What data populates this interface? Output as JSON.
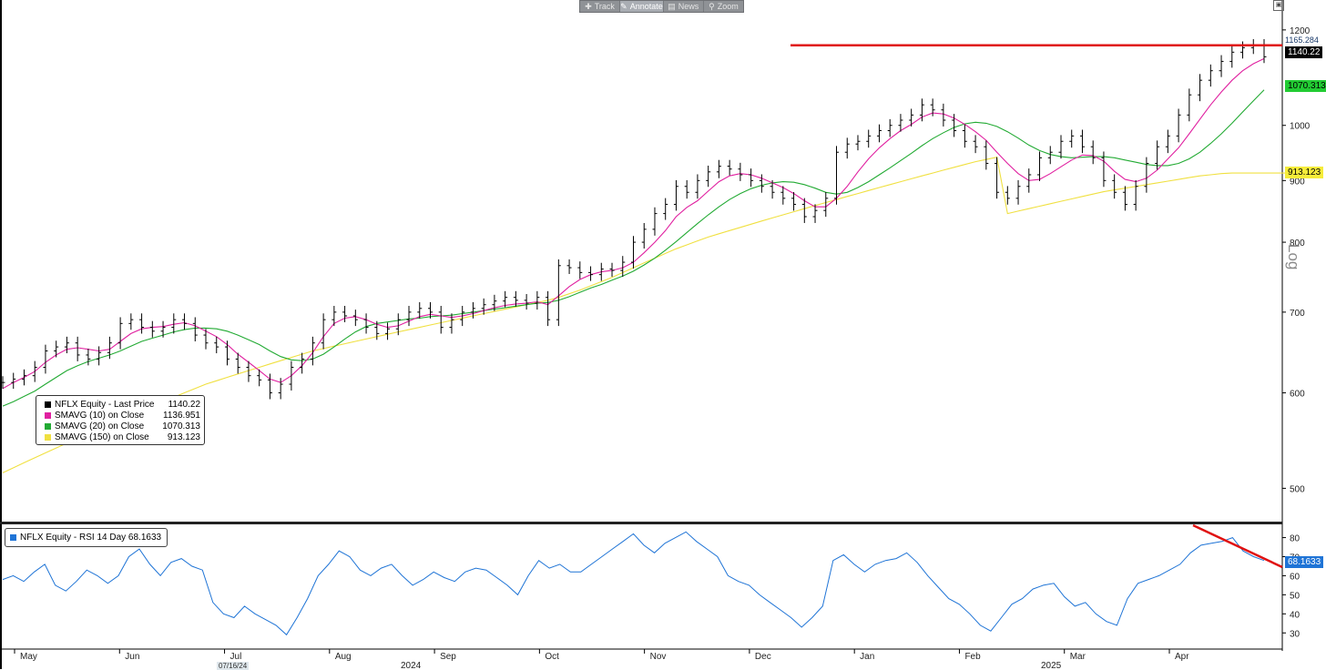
{
  "toolbar": {
    "items": [
      {
        "label": "Track",
        "icon": "plus-icon"
      },
      {
        "label": "Annotate",
        "icon": "pencil-icon"
      },
      {
        "label": "News",
        "icon": "news-icon"
      },
      {
        "label": "Zoom",
        "icon": "zoom-icon"
      }
    ]
  },
  "legend": {
    "rows": [
      {
        "name": "NFLX Equity - Last Price",
        "value": "1140.22",
        "color": "#000000"
      },
      {
        "name": "SMAVG (10)  on Close",
        "value": "1136.951",
        "color": "#e020a0"
      },
      {
        "name": "SMAVG (20)  on Close",
        "value": "1070.313",
        "color": "#22aa33"
      },
      {
        "name": "SMAVG (150)  on Close",
        "value": "913.123",
        "color": "#f0e040"
      }
    ]
  },
  "rsi_legend": {
    "label": "NFLX Equity - RSI 14 Day 68.1633",
    "color": "#1f74d6"
  },
  "price_tags": {
    "high": "1165.284",
    "last": "1140.22",
    "sma20": "1070.313",
    "sma150": "913.123",
    "rsi": "68.1633"
  },
  "scale_label": "Log",
  "date_marker": "07/16/24",
  "x_axis": {
    "months": [
      "May",
      "Jun",
      "Jul",
      "Aug",
      "Sep",
      "Oct",
      "Nov",
      "Dec",
      "Jan",
      "Feb",
      "Mar",
      "Apr"
    ],
    "years": [
      "2024",
      "2025"
    ]
  },
  "chart_data": [
    {
      "type": "line",
      "title": "NFLX Equity",
      "ylabel": "",
      "y_scale": "log",
      "yticks": [
        500,
        600,
        700,
        800,
        900,
        1000,
        1200
      ],
      "ylim": [
        470,
        1240
      ],
      "date_range": [
        "2024-04-26",
        "2025-04-25"
      ],
      "series": [
        {
          "name": "NFLX Equity - Last Price",
          "color": "#000000",
          "values": [
            612,
            616,
            620,
            630,
            650,
            655,
            660,
            645,
            640,
            648,
            660,
            685,
            690,
            680,
            675,
            680,
            690,
            685,
            670,
            660,
            655,
            640,
            630,
            620,
            615,
            600,
            610,
            630,
            640,
            660,
            690,
            700,
            695,
            690,
            680,
            672,
            678,
            690,
            700,
            705,
            700,
            680,
            690,
            700,
            705,
            710,
            715,
            720,
            716,
            712,
            720,
            690,
            765,
            762,
            755,
            752,
            760,
            758,
            770,
            800,
            820,
            845,
            860,
            890,
            880,
            900,
            915,
            925,
            920,
            910,
            900,
            890,
            880,
            870,
            860,
            840,
            850,
            870,
            950,
            965,
            970,
            980,
            990,
            1000,
            1010,
            1020,
            1040,
            1030,
            1010,
            990,
            970,
            960,
            930,
            880,
            870,
            890,
            910,
            940,
            950,
            970,
            980,
            960,
            940,
            900,
            880,
            860,
            890,
            930,
            960,
            980,
            1020,
            1060,
            1090,
            1110,
            1130,
            1150,
            1160,
            1165,
            1140
          ]
        },
        {
          "name": "SMAVG (10)",
          "color": "#e020a0",
          "values": [
            605,
            612,
            618,
            625,
            636,
            645,
            652,
            654,
            652,
            650,
            652,
            662,
            672,
            678,
            680,
            681,
            684,
            686,
            682,
            675,
            668,
            658,
            646,
            636,
            626,
            616,
            612,
            620,
            632,
            648,
            668,
            685,
            692,
            694,
            690,
            684,
            680,
            682,
            688,
            694,
            697,
            695,
            693,
            695,
            698,
            702,
            706,
            709,
            711,
            712,
            714,
            710,
            722,
            735,
            745,
            752,
            756,
            758,
            762,
            770,
            784,
            800,
            818,
            840,
            855,
            866,
            882,
            898,
            908,
            912,
            910,
            904,
            896,
            888,
            878,
            866,
            856,
            856,
            870,
            890,
            915,
            938,
            958,
            975,
            990,
            1002,
            1016,
            1024,
            1022,
            1014,
            1002,
            988,
            972,
            950,
            930,
            912,
            900,
            902,
            912,
            924,
            936,
            945,
            944,
            934,
            916,
            902,
            898,
            904,
            918,
            938,
            958,
            984,
            1012,
            1040,
            1066,
            1090,
            1110,
            1125,
            1136
          ]
        },
        {
          "name": "SMAVG (20)",
          "color": "#22aa33",
          "values": [
            585,
            590,
            596,
            602,
            610,
            618,
            626,
            632,
            637,
            641,
            645,
            650,
            656,
            662,
            666,
            670,
            674,
            677,
            679,
            679,
            678,
            675,
            670,
            664,
            658,
            650,
            643,
            639,
            638,
            640,
            646,
            655,
            665,
            674,
            681,
            685,
            687,
            689,
            691,
            692,
            694,
            695,
            696,
            698,
            700,
            702,
            704,
            706,
            708,
            710,
            712,
            713,
            716,
            721,
            727,
            733,
            738,
            744,
            750,
            757,
            766,
            776,
            788,
            801,
            815,
            829,
            843,
            856,
            868,
            878,
            886,
            892,
            896,
            898,
            897,
            893,
            887,
            880,
            877,
            880,
            888,
            898,
            910,
            922,
            935,
            948,
            962,
            975,
            986,
            996,
            1003,
            1006,
            1004,
            998,
            988,
            976,
            963,
            953,
            946,
            942,
            940,
            941,
            942,
            942,
            940,
            936,
            932,
            928,
            926,
            926,
            930,
            938,
            950,
            966,
            984,
            1004,
            1026,
            1048,
            1070
          ]
        },
        {
          "name": "SMAVG (150)",
          "color": "#f0e040",
          "values": [
            515,
            520,
            525,
            530,
            535,
            540,
            545,
            550,
            555,
            560,
            565,
            570,
            575,
            580,
            585,
            590,
            595,
            600,
            605,
            610,
            614,
            618,
            622,
            626,
            630,
            634,
            638,
            642,
            646,
            650,
            653,
            656,
            659,
            662,
            665,
            668,
            671,
            674,
            677,
            680,
            683,
            686,
            689,
            692,
            695,
            698,
            701,
            704,
            707,
            710,
            713,
            716,
            720,
            725,
            730,
            736,
            742,
            748,
            755,
            762,
            769,
            776,
            783,
            790,
            796,
            802,
            808,
            813,
            818,
            823,
            828,
            833,
            838,
            843,
            848,
            853,
            858,
            863,
            868,
            873,
            878,
            883,
            888,
            893,
            898,
            903,
            908,
            913,
            918,
            923,
            928,
            933,
            937,
            941,
            845,
            849,
            853,
            857,
            861,
            865,
            869,
            873,
            877,
            881,
            884,
            887,
            890,
            893,
            896,
            899,
            902,
            905,
            908,
            910,
            912,
            913,
            913,
            913,
            913,
            913,
            913
          ]
        }
      ]
    },
    {
      "type": "line",
      "title": "NFLX Equity - RSI 14 Day",
      "ylabel": "",
      "yticks": [
        30,
        40,
        50,
        60,
        70,
        80
      ],
      "ylim": [
        22,
        86
      ],
      "series": [
        {
          "name": "NFLX Equity - RSI 14 Day",
          "color": "#1f74d6",
          "values": [
            58,
            60,
            57,
            62,
            66,
            55,
            52,
            57,
            63,
            60,
            56,
            60,
            70,
            74,
            66,
            60,
            67,
            69,
            65,
            63,
            46,
            40,
            38,
            44,
            40,
            37,
            34,
            29,
            38,
            48,
            60,
            66,
            73,
            70,
            63,
            60,
            64,
            66,
            60,
            55,
            58,
            62,
            59,
            57,
            62,
            64,
            63,
            59,
            55,
            50,
            60,
            68,
            64,
            66,
            62,
            62,
            66,
            70,
            74,
            78,
            82,
            76,
            72,
            77,
            80,
            83,
            78,
            74,
            70,
            60,
            57,
            55,
            50,
            46,
            42,
            38,
            33,
            38,
            44,
            68,
            71,
            66,
            62,
            66,
            68,
            69,
            72,
            67,
            60,
            54,
            48,
            45,
            40,
            34,
            31,
            38,
            45,
            48,
            53,
            55,
            56,
            49,
            44,
            46,
            40,
            36,
            34,
            48,
            56,
            58,
            60,
            63,
            66,
            72,
            76,
            77,
            78,
            80,
            73,
            70,
            68
          ]
        }
      ]
    }
  ]
}
